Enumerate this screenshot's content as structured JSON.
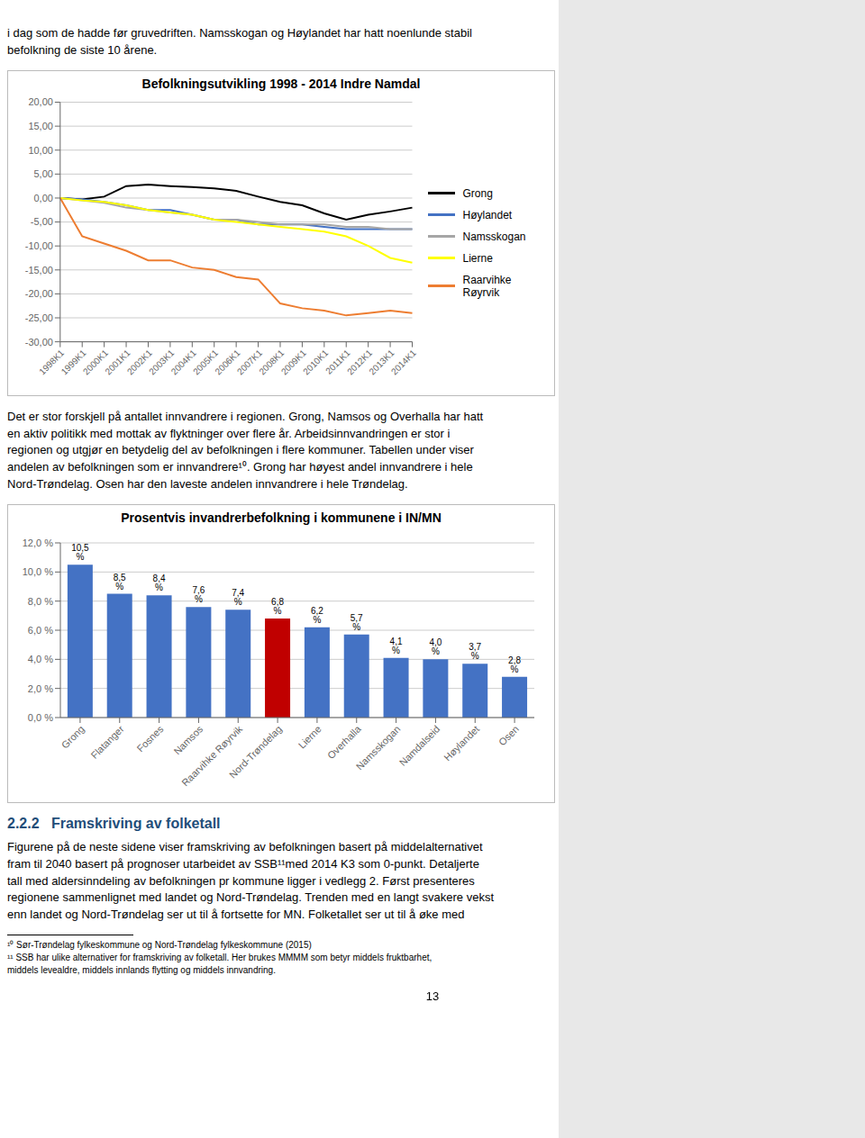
{
  "annotations": [
    "i dag som de hadde før gruvedriften. Namsskogan og Høylandet har hatt noenlunde stabil\nbefolkning de siste 10 årene.",
    "Det er stor forskjell på antallet innvandrere i regionen. Grong, Namsos og Overhalla har hatt\nen aktiv politikk med mottak av flyktninger over flere år. Arbeidsinnvandringen er stor i\nregionen og utgjør en betydelig del av befolkningen i flere kommuner. Tabellen under viser\nandelen av befolkningen som er innvandrere¹⁰. Grong har høyest andel innvandrere i hele\nNord-Trøndelag. Osen har den laveste andelen innvandrere i hele Trøndelag.",
    "2.2.2   Framskriving av folketall",
    "Figurene på de neste sidene viser framskriving av befolkningen basert på middelalternativet\nfram til 2040 basert på prognoser utarbeidet av SSB¹¹med 2014 K3 som 0-punkt. Detaljerte\ntall med aldersinndeling av befolkningen pr kommune ligger i vedlegg 2. Først presenteres\nregionene sammenlignet med landet og Nord-Trøndelag. Trenden med en langt svakere vekst\nenn landet og Nord-Trøndelag ser ut til å fortsette for MN. Folketallet ser ut til å øke med",
    "¹⁰ Sør-Trøndelag fylkeskommune og Nord-Trøndelag fylkeskommune (2015)",
    "¹¹ SSB har ulike alternativer for framskriving av folketall. Her brukes MMMM som betyr middels fruktbarhet,",
    "middels levealdre, middels innlands flytting og middels innvandring.",
    "13"
  ],
  "chart_data": [
    {
      "type": "line",
      "title": "Befolkningsutvikling 1998 - 2014 Indre Namdal",
      "categories": [
        "1998K1",
        "1999K1",
        "2000K1",
        "2001K1",
        "2002K1",
        "2003K1",
        "2004K1",
        "2005K1",
        "2006K1",
        "2007K1",
        "2008K1",
        "2009K1",
        "2010K1",
        "2011K1",
        "2012K1",
        "2013K1",
        "2014K1"
      ],
      "series": [
        {
          "name": "Grong",
          "color": "#000000",
          "values": [
            0.0,
            -0.3,
            0.3,
            2.5,
            2.8,
            2.5,
            2.3,
            2.0,
            1.5,
            0.3,
            -0.8,
            -1.5,
            -3.2,
            -4.5,
            -3.5,
            -2.8,
            -2.0
          ]
        },
        {
          "name": "Høylandet",
          "color": "#4472C4",
          "values": [
            0.0,
            -0.3,
            -0.8,
            -1.5,
            -2.5,
            -2.5,
            -3.5,
            -4.5,
            -4.5,
            -5.5,
            -5.5,
            -5.5,
            -6.0,
            -6.5,
            -6.5,
            -6.5,
            -6.5
          ]
        },
        {
          "name": "Namsskogan",
          "color": "#A6A6A6",
          "values": [
            0.0,
            -0.5,
            -1.0,
            -2.0,
            -2.5,
            -3.0,
            -3.5,
            -4.5,
            -4.5,
            -5.0,
            -5.5,
            -5.5,
            -5.5,
            -6.0,
            -6.0,
            -6.5,
            -6.5
          ]
        },
        {
          "name": "Lierne",
          "color": "#FFFF00",
          "values": [
            0.0,
            -0.5,
            -0.8,
            -1.5,
            -2.5,
            -3.0,
            -3.5,
            -4.5,
            -5.0,
            -5.5,
            -6.0,
            -6.5,
            -7.0,
            -8.0,
            -10.0,
            -12.5,
            -13.5
          ]
        },
        {
          "name": "Raarvihke\nRøyrvik",
          "color": "#ED7D31",
          "values": [
            0.0,
            -8.0,
            -9.5,
            -11.0,
            -13.0,
            -13.0,
            -14.5,
            -15.0,
            -16.5,
            -17.0,
            -22.0,
            -23.0,
            -23.5,
            -24.5,
            -24.0,
            -23.5,
            -24.0
          ]
        }
      ],
      "ylim": [
        -30,
        20
      ],
      "yticks": [
        {
          "value": -30,
          "label": "-30,00"
        },
        {
          "value": -25,
          "label": "-25,00"
        },
        {
          "value": -20,
          "label": "-20,00"
        },
        {
          "value": -15,
          "label": "-15,00"
        },
        {
          "value": -10,
          "label": "-10,00"
        },
        {
          "value": -5,
          "label": "-5,00"
        },
        {
          "value": 0,
          "label": "0,00"
        },
        {
          "value": 5,
          "label": "5,00"
        },
        {
          "value": 10,
          "label": "10,00"
        },
        {
          "value": 15,
          "label": "15,00"
        },
        {
          "value": 20,
          "label": "20,00"
        }
      ],
      "grid": true,
      "legend": "right"
    },
    {
      "type": "bar",
      "title": "Prosentvis invandrerbefolkning i kommunene i IN/MN",
      "categories": [
        "Grong",
        "Flatanger",
        "Fosnes",
        "Namsos",
        "Raarvihke Røyrvik",
        "Nord-Trøndelag",
        "Lierne",
        "Overhalla",
        "Namsskogan",
        "Namdalseid",
        "Høylandet",
        "Osen"
      ],
      "values": [
        10.5,
        8.5,
        8.4,
        7.6,
        7.4,
        6.8,
        6.2,
        5.7,
        4.1,
        4.0,
        3.7,
        2.8
      ],
      "value_labels": [
        "10,5 %",
        "8,5 %",
        "8,4 %",
        "7,6 %",
        "7,4 %",
        "6,8 %",
        "6,2 %",
        "5,7 %",
        "4,1 %",
        "4,0 %",
        "3,7 %",
        "2,8 %"
      ],
      "colors": [
        "#4472C4",
        "#4472C4",
        "#4472C4",
        "#4472C4",
        "#4472C4",
        "#C00000",
        "#4472C4",
        "#4472C4",
        "#4472C4",
        "#4472C4",
        "#4472C4",
        "#4472C4"
      ],
      "ylim": [
        0,
        12
      ],
      "yticks": [
        {
          "value": 0,
          "label": "0,0 %"
        },
        {
          "value": 2,
          "label": "2,0 %"
        },
        {
          "value": 4,
          "label": "4,0 %"
        },
        {
          "value": 6,
          "label": "6,0 %"
        },
        {
          "value": 8,
          "label": "8,0 %"
        },
        {
          "value": 10,
          "label": "10,0 %"
        },
        {
          "value": 12,
          "label": "12,0 %"
        }
      ],
      "grid": true,
      "data_labels": true
    }
  ]
}
